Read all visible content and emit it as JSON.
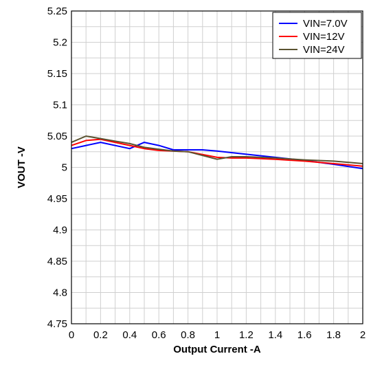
{
  "chart_data": {
    "type": "line",
    "title": "",
    "xlabel": "Output Current -A",
    "ylabel": "VOUT -V",
    "xlim": [
      0,
      2
    ],
    "ylim": [
      4.75,
      5.25
    ],
    "x_ticks": [
      0,
      0.2,
      0.4,
      0.6,
      0.8,
      1,
      1.2,
      1.4,
      1.6,
      1.8,
      2
    ],
    "x_tick_labels": [
      "0",
      "0.2",
      "0.4",
      "0.6",
      "0.8",
      "1",
      "1.2",
      "1.4",
      "1.6",
      "1.8",
      "2"
    ],
    "y_ticks": [
      4.75,
      4.8,
      4.85,
      4.9,
      4.95,
      5,
      5.05,
      5.1,
      5.15,
      5.2,
      5.25
    ],
    "y_tick_labels": [
      "4.75",
      "4.8",
      "4.85",
      "4.9",
      "4.95",
      "5",
      "5.05",
      "5.1",
      "5.15",
      "5.2",
      "5.25"
    ],
    "minor_y_step": 0.025,
    "grid": true,
    "legend_position": "top-right",
    "series": [
      {
        "name": "VIN=7.0V",
        "color": "#0000ff",
        "x": [
          0,
          0.2,
          0.4,
          0.5,
          0.6,
          0.7,
          0.8,
          0.9,
          1.0,
          1.2,
          1.4,
          1.6,
          1.8,
          2.0
        ],
        "y": [
          5.03,
          5.04,
          5.03,
          5.04,
          5.035,
          5.028,
          5.028,
          5.028,
          5.026,
          5.021,
          5.016,
          5.011,
          5.005,
          4.998
        ]
      },
      {
        "name": "VIN=12V",
        "color": "#ff0000",
        "x": [
          0,
          0.1,
          0.2,
          0.4,
          0.5,
          0.6,
          0.8,
          1.0,
          1.1,
          1.2,
          1.4,
          1.6,
          1.8,
          2.0
        ],
        "y": [
          5.035,
          5.043,
          5.045,
          5.035,
          5.03,
          5.027,
          5.025,
          5.016,
          5.015,
          5.015,
          5.013,
          5.01,
          5.006,
          5.002
        ]
      },
      {
        "name": "VIN=24V",
        "color": "#5a5230",
        "x": [
          0,
          0.1,
          0.2,
          0.3,
          0.4,
          0.5,
          0.6,
          0.7,
          0.8,
          1.0,
          1.1,
          1.2,
          1.4,
          1.6,
          1.8,
          2.0
        ],
        "y": [
          5.04,
          5.05,
          5.046,
          5.042,
          5.038,
          5.032,
          5.029,
          5.026,
          5.025,
          5.013,
          5.017,
          5.017,
          5.015,
          5.012,
          5.01,
          5.006
        ]
      }
    ]
  }
}
